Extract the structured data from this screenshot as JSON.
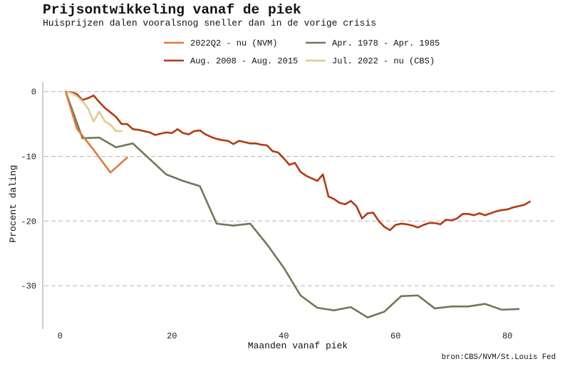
{
  "chart_data": {
    "type": "line",
    "title": "Prijsontwikkeling vanaf de piek",
    "subtitle": "Huisprijzen dalen vooralsnog sneller dan in de vorige crisis",
    "xlabel": "Maanden vanaf piek",
    "ylabel": "Procent daling",
    "source_note": "bron:CBS/NVM/St.Louis Fed",
    "xlim": [
      -3.1,
      88.9
    ],
    "ylim": [
      -36.7,
      1.5
    ],
    "xticks": [
      0,
      20,
      40,
      60,
      80
    ],
    "xtick_labels": [
      "0",
      "20",
      "40",
      "60",
      "80"
    ],
    "yticks": [
      0,
      -10,
      -20,
      -30
    ],
    "ytick_labels": [
      "0",
      "-10",
      "-20",
      "-30"
    ],
    "grid": "horizontal dashed",
    "legend_position": "top",
    "series": [
      {
        "name": "2022Q2 - nu (NVM)",
        "color": "#e07a3b",
        "x": [
          1,
          3,
          6,
          9,
          12
        ],
        "y": [
          0,
          -5.7,
          -9.0,
          -12.5,
          -10.2
        ]
      },
      {
        "name": "Apr. 1978 - Apr. 1985",
        "color": "#6b7b58",
        "x": [
          1,
          4,
          7,
          10,
          13,
          16,
          19,
          22,
          25,
          28,
          31,
          34,
          37,
          40,
          43,
          46,
          49,
          52,
          55,
          58,
          61,
          64,
          67,
          70,
          73,
          76,
          79,
          82
        ],
        "y": [
          0,
          -7.2,
          -7.1,
          -8.6,
          -8.0,
          -10.4,
          -12.8,
          -13.8,
          -14.6,
          -20.4,
          -20.7,
          -20.4,
          -23.6,
          -27.2,
          -31.5,
          -33.4,
          -33.8,
          -33.3,
          -34.9,
          -34.0,
          -31.6,
          -31.5,
          -33.5,
          -33.2,
          -33.2,
          -32.8,
          -33.7,
          -33.6
        ]
      },
      {
        "name": "Aug. 2008 - Aug. 2015",
        "color": "#b33a10",
        "x": [
          1,
          2,
          3,
          4,
          5,
          6,
          7,
          8,
          9,
          10,
          11,
          12,
          13,
          14,
          15,
          16,
          17,
          18,
          19,
          20,
          21,
          22,
          23,
          24,
          25,
          26,
          27,
          28,
          29,
          30,
          31,
          32,
          33,
          34,
          35,
          36,
          37,
          38,
          39,
          40,
          41,
          42,
          43,
          44,
          45,
          46,
          47,
          48,
          49,
          50,
          51,
          52,
          53,
          54,
          55,
          56,
          57,
          58,
          59,
          60,
          61,
          62,
          63,
          64,
          65,
          66,
          67,
          68,
          69,
          70,
          71,
          72,
          73,
          74,
          75,
          76,
          77,
          78,
          79,
          80,
          81,
          82,
          83,
          84
        ],
        "y": [
          0.0,
          -0.1,
          -0.4,
          -1.3,
          -1.0,
          -0.6,
          -1.6,
          -2.5,
          -3.2,
          -3.9,
          -5.0,
          -5.0,
          -5.8,
          -5.9,
          -6.1,
          -6.3,
          -6.7,
          -6.5,
          -6.3,
          -6.4,
          -5.8,
          -6.4,
          -6.6,
          -6.1,
          -6.0,
          -6.6,
          -7.0,
          -7.3,
          -7.5,
          -7.6,
          -8.1,
          -7.6,
          -7.8,
          -8.0,
          -8.0,
          -8.2,
          -8.3,
          -9.2,
          -9.4,
          -10.3,
          -11.3,
          -11.0,
          -12.4,
          -13.0,
          -13.4,
          -13.8,
          -12.8,
          -16.2,
          -16.6,
          -17.2,
          -17.4,
          -16.9,
          -17.7,
          -19.6,
          -18.8,
          -18.7,
          -20.0,
          -20.9,
          -21.4,
          -20.6,
          -20.4,
          -20.5,
          -20.7,
          -21.0,
          -20.6,
          -20.3,
          -20.3,
          -20.5,
          -19.8,
          -19.9,
          -19.6,
          -18.9,
          -18.9,
          -19.1,
          -18.8,
          -19.1,
          -18.8,
          -18.5,
          -18.3,
          -18.2,
          -17.9,
          -17.7,
          -17.5,
          -17.0
        ]
      },
      {
        "name": "Jul. 2022 - nu (CBS)",
        "color": "#e2c98f",
        "x": [
          1,
          2,
          3,
          4,
          5,
          6,
          7,
          8,
          9,
          10,
          11
        ],
        "y": [
          0,
          -0.2,
          -0.7,
          -1.5,
          -2.6,
          -4.6,
          -3.1,
          -4.6,
          -5.1,
          -6.1,
          -6.1
        ]
      }
    ]
  }
}
